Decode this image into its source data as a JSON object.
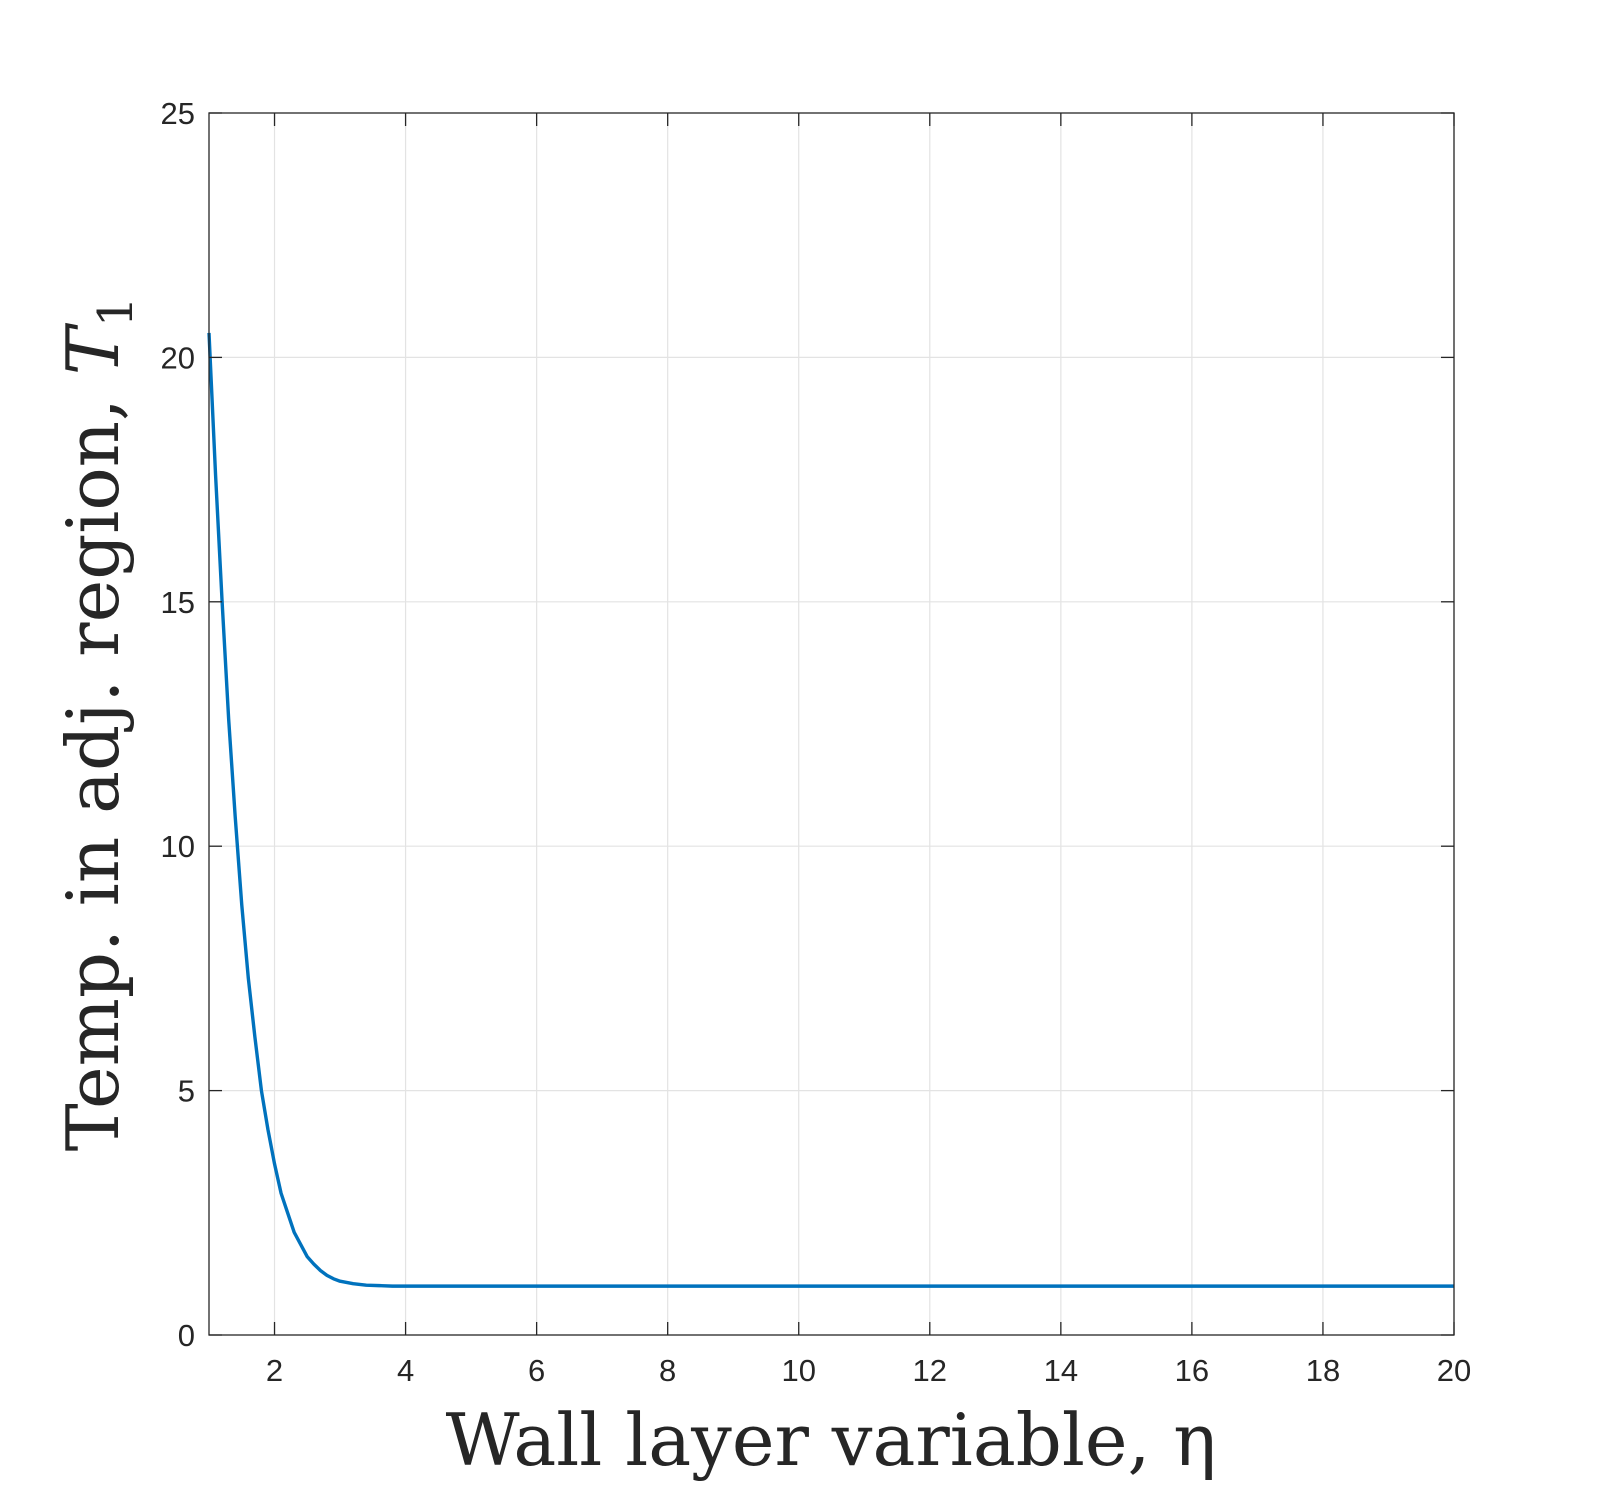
{
  "chart_data": {
    "type": "line",
    "title": "",
    "xlabel": "Wall layer variable, η",
    "ylabel_text": "Temp. in adj. region, ",
    "ylabel_symbol": "T",
    "ylabel_subscript": "1",
    "xlim": [
      1,
      20
    ],
    "ylim": [
      0,
      25
    ],
    "xticks": [
      2,
      4,
      6,
      8,
      10,
      12,
      14,
      16,
      18,
      20
    ],
    "yticks": [
      0,
      5,
      10,
      15,
      20,
      25
    ],
    "grid": true,
    "legend": "none",
    "series": [
      {
        "color": "#0072BD",
        "x": [
          1.0,
          1.1,
          1.2,
          1.3,
          1.4,
          1.5,
          1.6,
          1.7,
          1.8,
          1.9,
          2.0,
          2.1,
          2.2,
          2.3,
          2.4,
          2.5,
          2.6,
          2.7,
          2.8,
          2.9,
          3.0,
          3.2,
          3.4,
          3.6,
          3.8,
          4.0,
          4.5,
          5.0,
          6.0,
          8.0,
          10.0,
          12.0,
          14.0,
          16.0,
          18.0,
          20.0
        ],
        "y": [
          20.5,
          17.6,
          15.0,
          12.6,
          10.6,
          8.8,
          7.3,
          6.1,
          5.0,
          4.2,
          3.5,
          2.9,
          2.5,
          2.1,
          1.85,
          1.6,
          1.45,
          1.32,
          1.22,
          1.15,
          1.1,
          1.05,
          1.02,
          1.01,
          1.0,
          1.0,
          1.0,
          1.0,
          1.0,
          1.0,
          1.0,
          1.0,
          1.0,
          1.0,
          1.0,
          1.0
        ]
      }
    ]
  }
}
